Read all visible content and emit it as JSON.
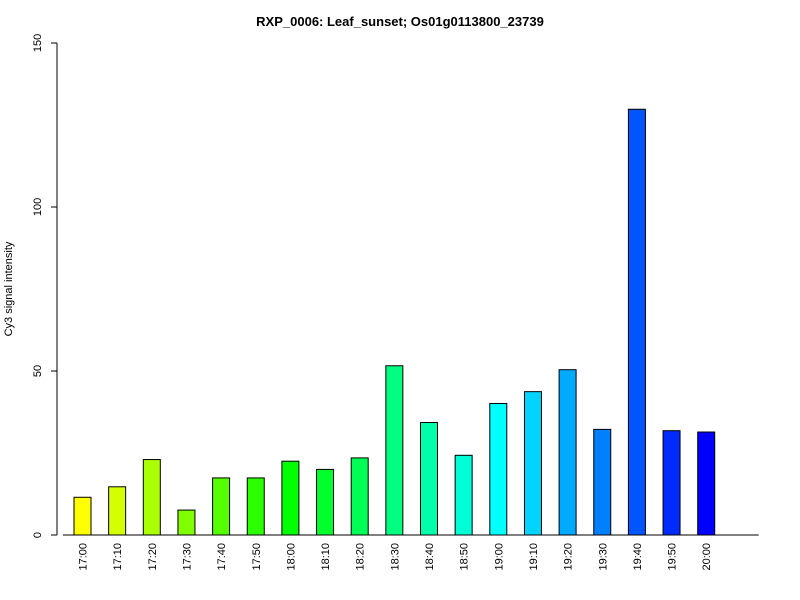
{
  "chart_data": {
    "type": "bar",
    "title": "RXP_0006: Leaf_sunset; Os01g0113800_23739",
    "xlabel": "",
    "ylabel": "Cy3 signal intensity",
    "ylim": [
      0,
      150
    ],
    "yticks": [
      0,
      50,
      100,
      150
    ],
    "categories": [
      "17:00",
      "17:10",
      "17:20",
      "17:30",
      "17:40",
      "17:50",
      "18:00",
      "18:10",
      "18:20",
      "18:30",
      "18:40",
      "18:50",
      "19:00",
      "19:10",
      "19:20",
      "19:30",
      "19:40",
      "19:50",
      "20:00"
    ],
    "values": [
      11.5,
      14.7,
      23.0,
      7.6,
      17.4,
      17.4,
      22.5,
      20.0,
      23.5,
      51.6,
      34.3,
      24.3,
      40.1,
      43.7,
      50.4,
      32.2,
      129.8,
      31.8,
      31.4
    ],
    "colors": [
      "#FFFF00",
      "#D4FF00",
      "#AAFF00",
      "#80FF00",
      "#55FF00",
      "#2BFF00",
      "#00FF00",
      "#00FF2B",
      "#00FF55",
      "#00FF80",
      "#00FFAA",
      "#00FFD4",
      "#00FFFF",
      "#00D4FF",
      "#00AAFF",
      "#0080FF",
      "#0055FF",
      "#002BFF",
      "#0000FF"
    ],
    "grid": false,
    "legend": "none"
  }
}
